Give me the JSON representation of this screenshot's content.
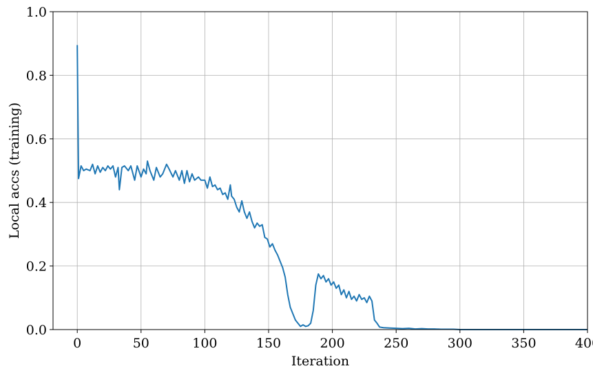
{
  "chart_data": {
    "type": "line",
    "title": "",
    "xlabel": "Iteration",
    "ylabel": "Local accs (training)",
    "xlim": [
      -19,
      400
    ],
    "ylim": [
      0,
      1
    ],
    "xticks": [
      "0",
      "50",
      "100",
      "150",
      "200",
      "250",
      "300",
      "350",
      "400"
    ],
    "yticks": [
      "0.0",
      "0.2",
      "0.4",
      "0.6",
      "0.8",
      "1.0"
    ],
    "grid": true,
    "line_color": "#1f77b4",
    "series": [
      {
        "x": [
          0,
          1,
          3,
          5,
          7,
          10,
          12,
          14,
          16,
          18,
          20,
          22,
          24,
          26,
          28,
          30,
          32,
          33,
          35,
          37,
          40,
          42,
          45,
          47,
          50,
          52,
          54,
          55,
          57,
          60,
          62,
          65,
          67,
          70,
          72,
          75,
          77,
          80,
          82,
          84,
          86,
          88,
          90,
          92,
          95,
          97,
          100,
          102,
          104,
          106,
          108,
          110,
          112,
          114,
          116,
          118,
          120,
          121,
          123,
          125,
          127,
          129,
          131,
          133,
          135,
          137,
          139,
          141,
          143,
          145,
          147,
          149,
          151,
          153,
          155,
          157,
          159,
          161,
          163,
          165,
          167,
          169,
          171,
          173,
          175,
          177,
          179,
          181,
          183,
          185,
          187,
          189,
          191,
          193,
          195,
          197,
          199,
          201,
          203,
          205,
          207,
          209,
          211,
          213,
          215,
          217,
          219,
          221,
          223,
          225,
          227,
          229,
          231,
          233,
          235,
          237,
          240,
          245,
          250,
          255,
          260,
          265,
          270,
          275,
          280,
          285,
          290,
          295,
          300,
          350,
          400
        ],
        "y": [
          0.895,
          0.475,
          0.515,
          0.5,
          0.505,
          0.5,
          0.52,
          0.49,
          0.515,
          0.495,
          0.51,
          0.5,
          0.515,
          0.505,
          0.515,
          0.48,
          0.51,
          0.44,
          0.51,
          0.515,
          0.5,
          0.515,
          0.47,
          0.515,
          0.48,
          0.505,
          0.49,
          0.53,
          0.5,
          0.47,
          0.51,
          0.48,
          0.49,
          0.52,
          0.505,
          0.48,
          0.5,
          0.47,
          0.5,
          0.46,
          0.5,
          0.465,
          0.49,
          0.47,
          0.48,
          0.47,
          0.47,
          0.445,
          0.48,
          0.45,
          0.455,
          0.44,
          0.445,
          0.425,
          0.43,
          0.41,
          0.455,
          0.42,
          0.41,
          0.385,
          0.37,
          0.405,
          0.37,
          0.35,
          0.37,
          0.34,
          0.32,
          0.335,
          0.325,
          0.33,
          0.29,
          0.285,
          0.26,
          0.27,
          0.25,
          0.235,
          0.215,
          0.195,
          0.165,
          0.11,
          0.07,
          0.05,
          0.03,
          0.02,
          0.01,
          0.015,
          0.01,
          0.012,
          0.02,
          0.06,
          0.14,
          0.175,
          0.16,
          0.17,
          0.15,
          0.16,
          0.14,
          0.15,
          0.13,
          0.14,
          0.11,
          0.125,
          0.1,
          0.12,
          0.095,
          0.105,
          0.09,
          0.11,
          0.095,
          0.1,
          0.085,
          0.105,
          0.09,
          0.03,
          0.02,
          0.008,
          0.006,
          0.005,
          0.004,
          0.003,
          0.004,
          0.002,
          0.003,
          0.002,
          0.002,
          0.001,
          0.001,
          0.001,
          0.0,
          0.0,
          0.0
        ]
      }
    ]
  }
}
